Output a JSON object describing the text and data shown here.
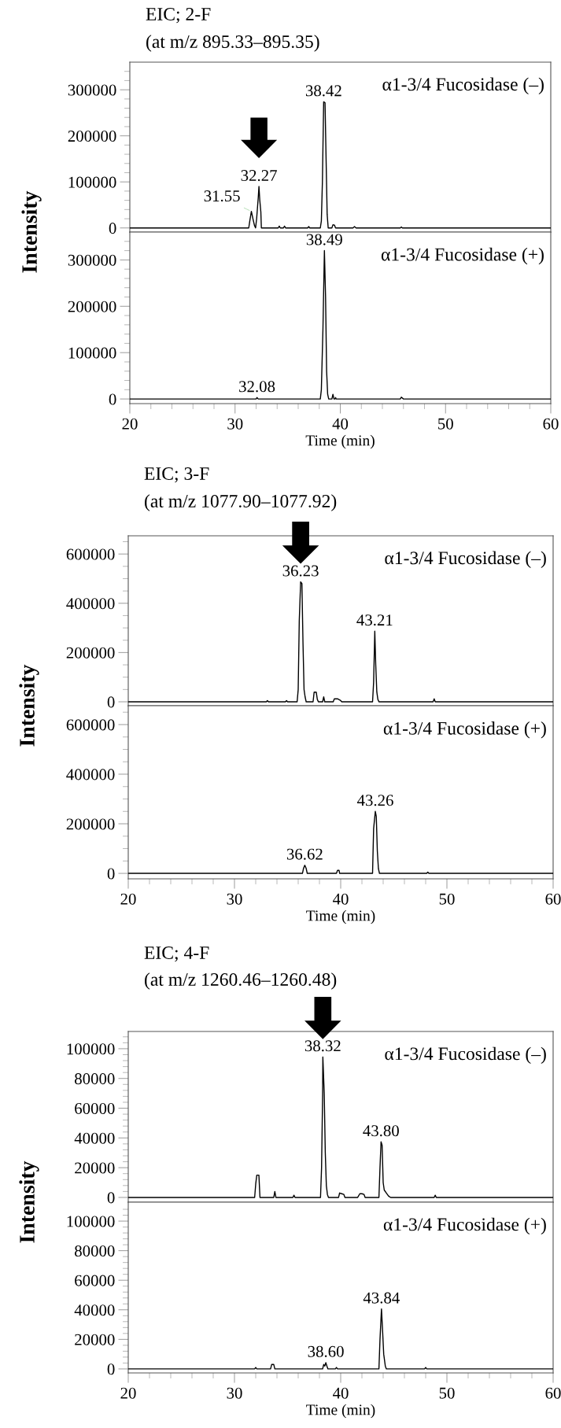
{
  "chart_data": [
    {
      "type": "line",
      "title": "EIC; 2-F",
      "subtitle": "(at m/z 895.33–895.35)",
      "ylabel": "Intensity",
      "color": "#000000",
      "tick_labels": "y",
      "xlim": [
        20,
        60
      ],
      "ylim": [
        -9000,
        360000
      ],
      "yticks": [
        0,
        {
          "value": 20000,
          "label": null
        },
        {
          "value": 40000,
          "label": null
        },
        {
          "value": 60000,
          "label": null
        },
        {
          "value": 80000,
          "label": null
        },
        100000,
        {
          "value": 120000,
          "label": null
        },
        {
          "value": 140000,
          "label": null
        },
        {
          "value": 160000,
          "label": null
        },
        {
          "value": 180000,
          "label": null
        },
        200000,
        {
          "value": 220000,
          "label": null
        },
        {
          "value": 240000,
          "label": null
        },
        {
          "value": 260000,
          "label": null
        },
        {
          "value": 280000,
          "label": null
        },
        300000,
        {
          "value": 320000,
          "label": null
        },
        {
          "value": 340000,
          "label": null
        }
      ],
      "x": [
        20,
        31.3,
        31.4,
        31.55,
        31.7,
        31.85,
        31.95,
        32.05,
        32.2,
        32.27,
        32.35,
        32.45,
        32.5,
        34.1,
        34.2,
        34.3,
        34.6,
        34.7,
        34.8,
        36.9,
        37.0,
        37.1,
        38.1,
        38.2,
        38.3,
        38.42,
        38.55,
        38.65,
        38.75,
        38.85,
        39.2,
        39.3,
        39.45,
        39.55,
        41.2,
        41.35,
        41.5,
        45.7,
        45.8,
        45.9,
        60
      ],
      "values": [
        0,
        0,
        15000,
        36000,
        20000,
        5000,
        0,
        20000,
        65000,
        90000,
        60000,
        35000,
        0,
        0,
        4000,
        0,
        0,
        4000,
        0,
        0,
        3000,
        0,
        0,
        15000,
        100000,
        274000,
        272000,
        150000,
        30000,
        0,
        0,
        7000,
        6000,
        0,
        0,
        3000,
        0,
        0,
        2000,
        0,
        0
      ],
      "annotations": [
        "α1-3/4 Fucosidase (–)",
        {
          "text": "31.55",
          "x": 31.55,
          "y": 36000
        },
        {
          "text": "32.27",
          "x": 32.27,
          "y": 90000
        },
        {
          "text": "38.42",
          "x": 38.42,
          "y": 274000
        }
      ]
    },
    {
      "type": "line",
      "xlabel": "Time (min)",
      "color": "#000000",
      "xlim": [
        20,
        60
      ],
      "ylim": [
        -10000,
        360000
      ],
      "xticks": [
        20,
        {
          "value": 22,
          "label": null
        },
        {
          "value": 24,
          "label": null
        },
        {
          "value": 26,
          "label": null
        },
        {
          "value": 28,
          "label": null
        },
        30,
        {
          "value": 32,
          "label": null
        },
        {
          "value": 34,
          "label": null
        },
        {
          "value": 36,
          "label": null
        },
        {
          "value": 38,
          "label": null
        },
        40,
        {
          "value": 42,
          "label": null
        },
        {
          "value": 44,
          "label": null
        },
        {
          "value": 46,
          "label": null
        },
        {
          "value": 48,
          "label": null
        },
        50,
        {
          "value": 52,
          "label": null
        },
        {
          "value": 54,
          "label": null
        },
        {
          "value": 56,
          "label": null
        },
        {
          "value": 58,
          "label": null
        },
        60
      ],
      "yticks": [
        0,
        {
          "value": 20000,
          "label": null
        },
        {
          "value": 40000,
          "label": null
        },
        {
          "value": 60000,
          "label": null
        },
        {
          "value": 80000,
          "label": null
        },
        100000,
        {
          "value": 120000,
          "label": null
        },
        {
          "value": 140000,
          "label": null
        },
        {
          "value": 160000,
          "label": null
        },
        {
          "value": 180000,
          "label": null
        },
        200000,
        {
          "value": 220000,
          "label": null
        },
        {
          "value": 240000,
          "label": null
        },
        {
          "value": 260000,
          "label": null
        },
        {
          "value": 280000,
          "label": null
        },
        300000,
        {
          "value": 320000,
          "label": null
        },
        {
          "value": 340000,
          "label": null
        }
      ],
      "x": [
        20,
        32.0,
        32.08,
        32.2,
        38.1,
        38.2,
        38.35,
        38.49,
        38.6,
        38.7,
        38.8,
        38.9,
        39.2,
        39.3,
        39.4,
        39.5,
        39.55,
        39.6,
        45.7,
        45.8,
        46.0,
        60
      ],
      "values": [
        0,
        0,
        3000,
        0,
        0,
        20000,
        150000,
        320000,
        220000,
        60000,
        10000,
        0,
        0,
        10000,
        0,
        0,
        3000,
        0,
        0,
        4000,
        0,
        0
      ],
      "annotations": [
        "α1-3/4 Fucosidase (+)",
        {
          "text": "32.08",
          "x": 32.08,
          "y": 3000
        },
        {
          "text": "38.49",
          "x": 38.49,
          "y": 320000
        }
      ]
    },
    {
      "type": "line",
      "title": "EIC; 3-F",
      "subtitle": "(at m/z 1077.90–1077.92)",
      "ylabel": "Intensity",
      "color": "#000000",
      "tick_labels": "y",
      "xlim": [
        20,
        60
      ],
      "ylim": [
        -16000,
        674000
      ],
      "yticks": [
        0,
        {
          "value": 50000,
          "label": null
        },
        {
          "value": 100000,
          "label": null
        },
        {
          "value": 150000,
          "label": null
        },
        200000,
        {
          "value": 250000,
          "label": null
        },
        {
          "value": 300000,
          "label": null
        },
        {
          "value": 350000,
          "label": null
        },
        400000,
        {
          "value": 450000,
          "label": null
        },
        {
          "value": 500000,
          "label": null
        },
        {
          "value": 550000,
          "label": null
        },
        600000,
        {
          "value": 650000,
          "label": null
        }
      ],
      "x": [
        20,
        33.0,
        33.1,
        33.2,
        34.8,
        34.9,
        35.0,
        35.9,
        36.0,
        36.1,
        36.23,
        36.35,
        36.45,
        36.55,
        36.65,
        36.75,
        37.4,
        37.5,
        37.7,
        37.8,
        37.9,
        38.3,
        38.4,
        38.5,
        39.3,
        39.4,
        39.7,
        40.0,
        40.1,
        43.0,
        43.1,
        43.21,
        43.3,
        43.4,
        43.5,
        43.6,
        43.7,
        48.7,
        48.8,
        48.9,
        60
      ],
      "values": [
        0,
        0,
        5000,
        0,
        0,
        5000,
        0,
        0,
        50000,
        330000,
        487000,
        480000,
        240000,
        50000,
        20000,
        0,
        0,
        39000,
        39000,
        10000,
        0,
        0,
        20000,
        0,
        0,
        12000,
        12000,
        5000,
        0,
        0,
        80000,
        287000,
        150000,
        40000,
        10000,
        0,
        0,
        0,
        12000,
        0,
        0
      ],
      "annotations": [
        "α1-3/4 Fucosidase (–)",
        {
          "text": "36.23",
          "x": 36.23,
          "y": 487000
        },
        {
          "text": "43.21",
          "x": 43.21,
          "y": 287000
        }
      ]
    },
    {
      "type": "line",
      "xlabel": "Time (min)",
      "color": "#000000",
      "xlim": [
        20,
        60
      ],
      "ylim": [
        -22000,
        676000
      ],
      "xticks": [
        20,
        {
          "value": 22,
          "label": null
        },
        {
          "value": 24,
          "label": null
        },
        {
          "value": 26,
          "label": null
        },
        {
          "value": 28,
          "label": null
        },
        30,
        {
          "value": 32,
          "label": null
        },
        {
          "value": 34,
          "label": null
        },
        {
          "value": 36,
          "label": null
        },
        {
          "value": 38,
          "label": null
        },
        40,
        {
          "value": 42,
          "label": null
        },
        {
          "value": 44,
          "label": null
        },
        {
          "value": 46,
          "label": null
        },
        {
          "value": 48,
          "label": null
        },
        50,
        {
          "value": 52,
          "label": null
        },
        {
          "value": 54,
          "label": null
        },
        {
          "value": 56,
          "label": null
        },
        {
          "value": 58,
          "label": null
        },
        60
      ],
      "yticks": [
        0,
        {
          "value": 50000,
          "label": null
        },
        {
          "value": 100000,
          "label": null
        },
        {
          "value": 150000,
          "label": null
        },
        200000,
        {
          "value": 250000,
          "label": null
        },
        {
          "value": 300000,
          "label": null
        },
        {
          "value": 350000,
          "label": null
        },
        400000,
        {
          "value": 450000,
          "label": null
        },
        {
          "value": 500000,
          "label": null
        },
        {
          "value": 550000,
          "label": null
        },
        600000,
        {
          "value": 650000,
          "label": null
        }
      ],
      "x": [
        20,
        36.4,
        36.5,
        36.62,
        36.75,
        36.85,
        39.6,
        39.7,
        39.85,
        39.9,
        43.0,
        43.1,
        43.26,
        43.35,
        43.45,
        43.55,
        43.65,
        48.1,
        48.2,
        48.3,
        60
      ],
      "values": [
        0,
        0,
        20000,
        33000,
        20000,
        0,
        0,
        12000,
        12000,
        0,
        0,
        180000,
        250000,
        230000,
        90000,
        20000,
        0,
        0,
        5000,
        0,
        0
      ],
      "annotations": [
        "α1-3/4 Fucosidase (+)",
        {
          "text": "36.62",
          "x": 36.62,
          "y": 33000
        },
        {
          "text": "43.26",
          "x": 43.26,
          "y": 250000
        }
      ]
    },
    {
      "type": "line",
      "title": "EIC; 4-F",
      "subtitle": "(at m/z 1260.46–1260.48)",
      "ylabel": "Intensity",
      "color": "#000000",
      "tick_labels": "y",
      "xlim": [
        20,
        60
      ],
      "ylim": [
        -3200,
        111600
      ],
      "yticks": [
        0,
        {
          "value": 4000,
          "label": null
        },
        {
          "value": 8000,
          "label": null
        },
        {
          "value": 12000,
          "label": null
        },
        {
          "value": 16000,
          "label": null
        },
        20000,
        {
          "value": 24000,
          "label": null
        },
        {
          "value": 28000,
          "label": null
        },
        {
          "value": 32000,
          "label": null
        },
        {
          "value": 36000,
          "label": null
        },
        40000,
        {
          "value": 44000,
          "label": null
        },
        {
          "value": 48000,
          "label": null
        },
        {
          "value": 52000,
          "label": null
        },
        {
          "value": 56000,
          "label": null
        },
        60000,
        {
          "value": 64000,
          "label": null
        },
        {
          "value": 68000,
          "label": null
        },
        {
          "value": 72000,
          "label": null
        },
        {
          "value": 76000,
          "label": null
        },
        80000,
        {
          "value": 84000,
          "label": null
        },
        {
          "value": 88000,
          "label": null
        },
        {
          "value": 92000,
          "label": null
        },
        {
          "value": 96000,
          "label": null
        },
        100000,
        {
          "value": 104000,
          "label": null
        },
        {
          "value": 108000,
          "label": null
        }
      ],
      "x": [
        20,
        31.9,
        32.0,
        32.1,
        32.3,
        32.4,
        33.7,
        33.8,
        33.9,
        35.5,
        35.6,
        35.7,
        38.1,
        38.2,
        38.3,
        38.32,
        38.45,
        38.55,
        38.65,
        38.75,
        38.85,
        39.8,
        39.9,
        40.1,
        40.3,
        40.4,
        41.6,
        41.8,
        42.0,
        42.2,
        42.3,
        43.6,
        43.7,
        43.8,
        43.9,
        44.0,
        44.1,
        44.3,
        44.5,
        44.7,
        48.8,
        48.9,
        49.0,
        60
      ],
      "values": [
        0,
        0,
        9000,
        15000,
        15000,
        0,
        0,
        4000,
        0,
        0,
        1500,
        0,
        0,
        20000,
        70000,
        94500,
        70000,
        30000,
        8000,
        2000,
        0,
        0,
        3000,
        2500,
        2000,
        0,
        0,
        2500,
        2500,
        2000,
        0,
        0,
        20000,
        37400,
        35000,
        10000,
        5000,
        3000,
        1000,
        0,
        0,
        1500,
        0,
        0
      ],
      "annotations": [
        "α1-3/4 Fucosidase (–)",
        {
          "text": "38.32",
          "x": 38.32,
          "y": 94500
        },
        {
          "text": "43.80",
          "x": 43.8,
          "y": 37400
        }
      ]
    },
    {
      "type": "line",
      "xlabel": "Time (min)",
      "color": "#000000",
      "xlim": [
        20,
        60
      ],
      "ylim": [
        -2700,
        112800
      ],
      "xticks": [
        20,
        {
          "value": 22,
          "label": null
        },
        {
          "value": 24,
          "label": null
        },
        {
          "value": 26,
          "label": null
        },
        {
          "value": 28,
          "label": null
        },
        30,
        {
          "value": 32,
          "label": null
        },
        {
          "value": 34,
          "label": null
        },
        {
          "value": 36,
          "label": null
        },
        {
          "value": 38,
          "label": null
        },
        40,
        {
          "value": 42,
          "label": null
        },
        {
          "value": 44,
          "label": null
        },
        {
          "value": 46,
          "label": null
        },
        {
          "value": 48,
          "label": null
        },
        50,
        {
          "value": 52,
          "label": null
        },
        {
          "value": 54,
          "label": null
        },
        {
          "value": 56,
          "label": null
        },
        {
          "value": 58,
          "label": null
        },
        60
      ],
      "yticks": [
        0,
        {
          "value": 4000,
          "label": null
        },
        {
          "value": 8000,
          "label": null
        },
        {
          "value": 12000,
          "label": null
        },
        {
          "value": 16000,
          "label": null
        },
        20000,
        {
          "value": 24000,
          "label": null
        },
        {
          "value": 28000,
          "label": null
        },
        {
          "value": 32000,
          "label": null
        },
        {
          "value": 36000,
          "label": null
        },
        40000,
        {
          "value": 44000,
          "label": null
        },
        {
          "value": 48000,
          "label": null
        },
        {
          "value": 52000,
          "label": null
        },
        {
          "value": 56000,
          "label": null
        },
        60000,
        {
          "value": 64000,
          "label": null
        },
        {
          "value": 68000,
          "label": null
        },
        {
          "value": 72000,
          "label": null
        },
        {
          "value": 76000,
          "label": null
        },
        80000,
        {
          "value": 84000,
          "label": null
        },
        {
          "value": 88000,
          "label": null
        },
        {
          "value": 92000,
          "label": null
        },
        {
          "value": 96000,
          "label": null
        },
        100000,
        {
          "value": 104000,
          "label": null
        },
        {
          "value": 108000,
          "label": null
        }
      ],
      "x": [
        20,
        31.9,
        32.0,
        32.1,
        33.4,
        33.5,
        33.7,
        33.8,
        38.3,
        38.4,
        38.5,
        38.6,
        38.7,
        38.8,
        39.5,
        39.6,
        39.7,
        43.6,
        43.7,
        43.84,
        43.95,
        44.05,
        44.2,
        44.3,
        47.9,
        48.0,
        48.1,
        60
      ],
      "values": [
        0,
        0,
        1000,
        0,
        0,
        3000,
        3000,
        0,
        0,
        3000,
        2000,
        4300,
        2000,
        0,
        0,
        1000,
        0,
        0,
        20000,
        40600,
        25000,
        10000,
        2000,
        0,
        0,
        1000,
        0,
        0
      ],
      "annotations": [
        "α1-3/4 Fucosidase (+)",
        {
          "text": "38.60",
          "x": 38.6,
          "y": 4300
        },
        {
          "text": "43.84",
          "x": 43.84,
          "y": 40600
        }
      ]
    }
  ]
}
